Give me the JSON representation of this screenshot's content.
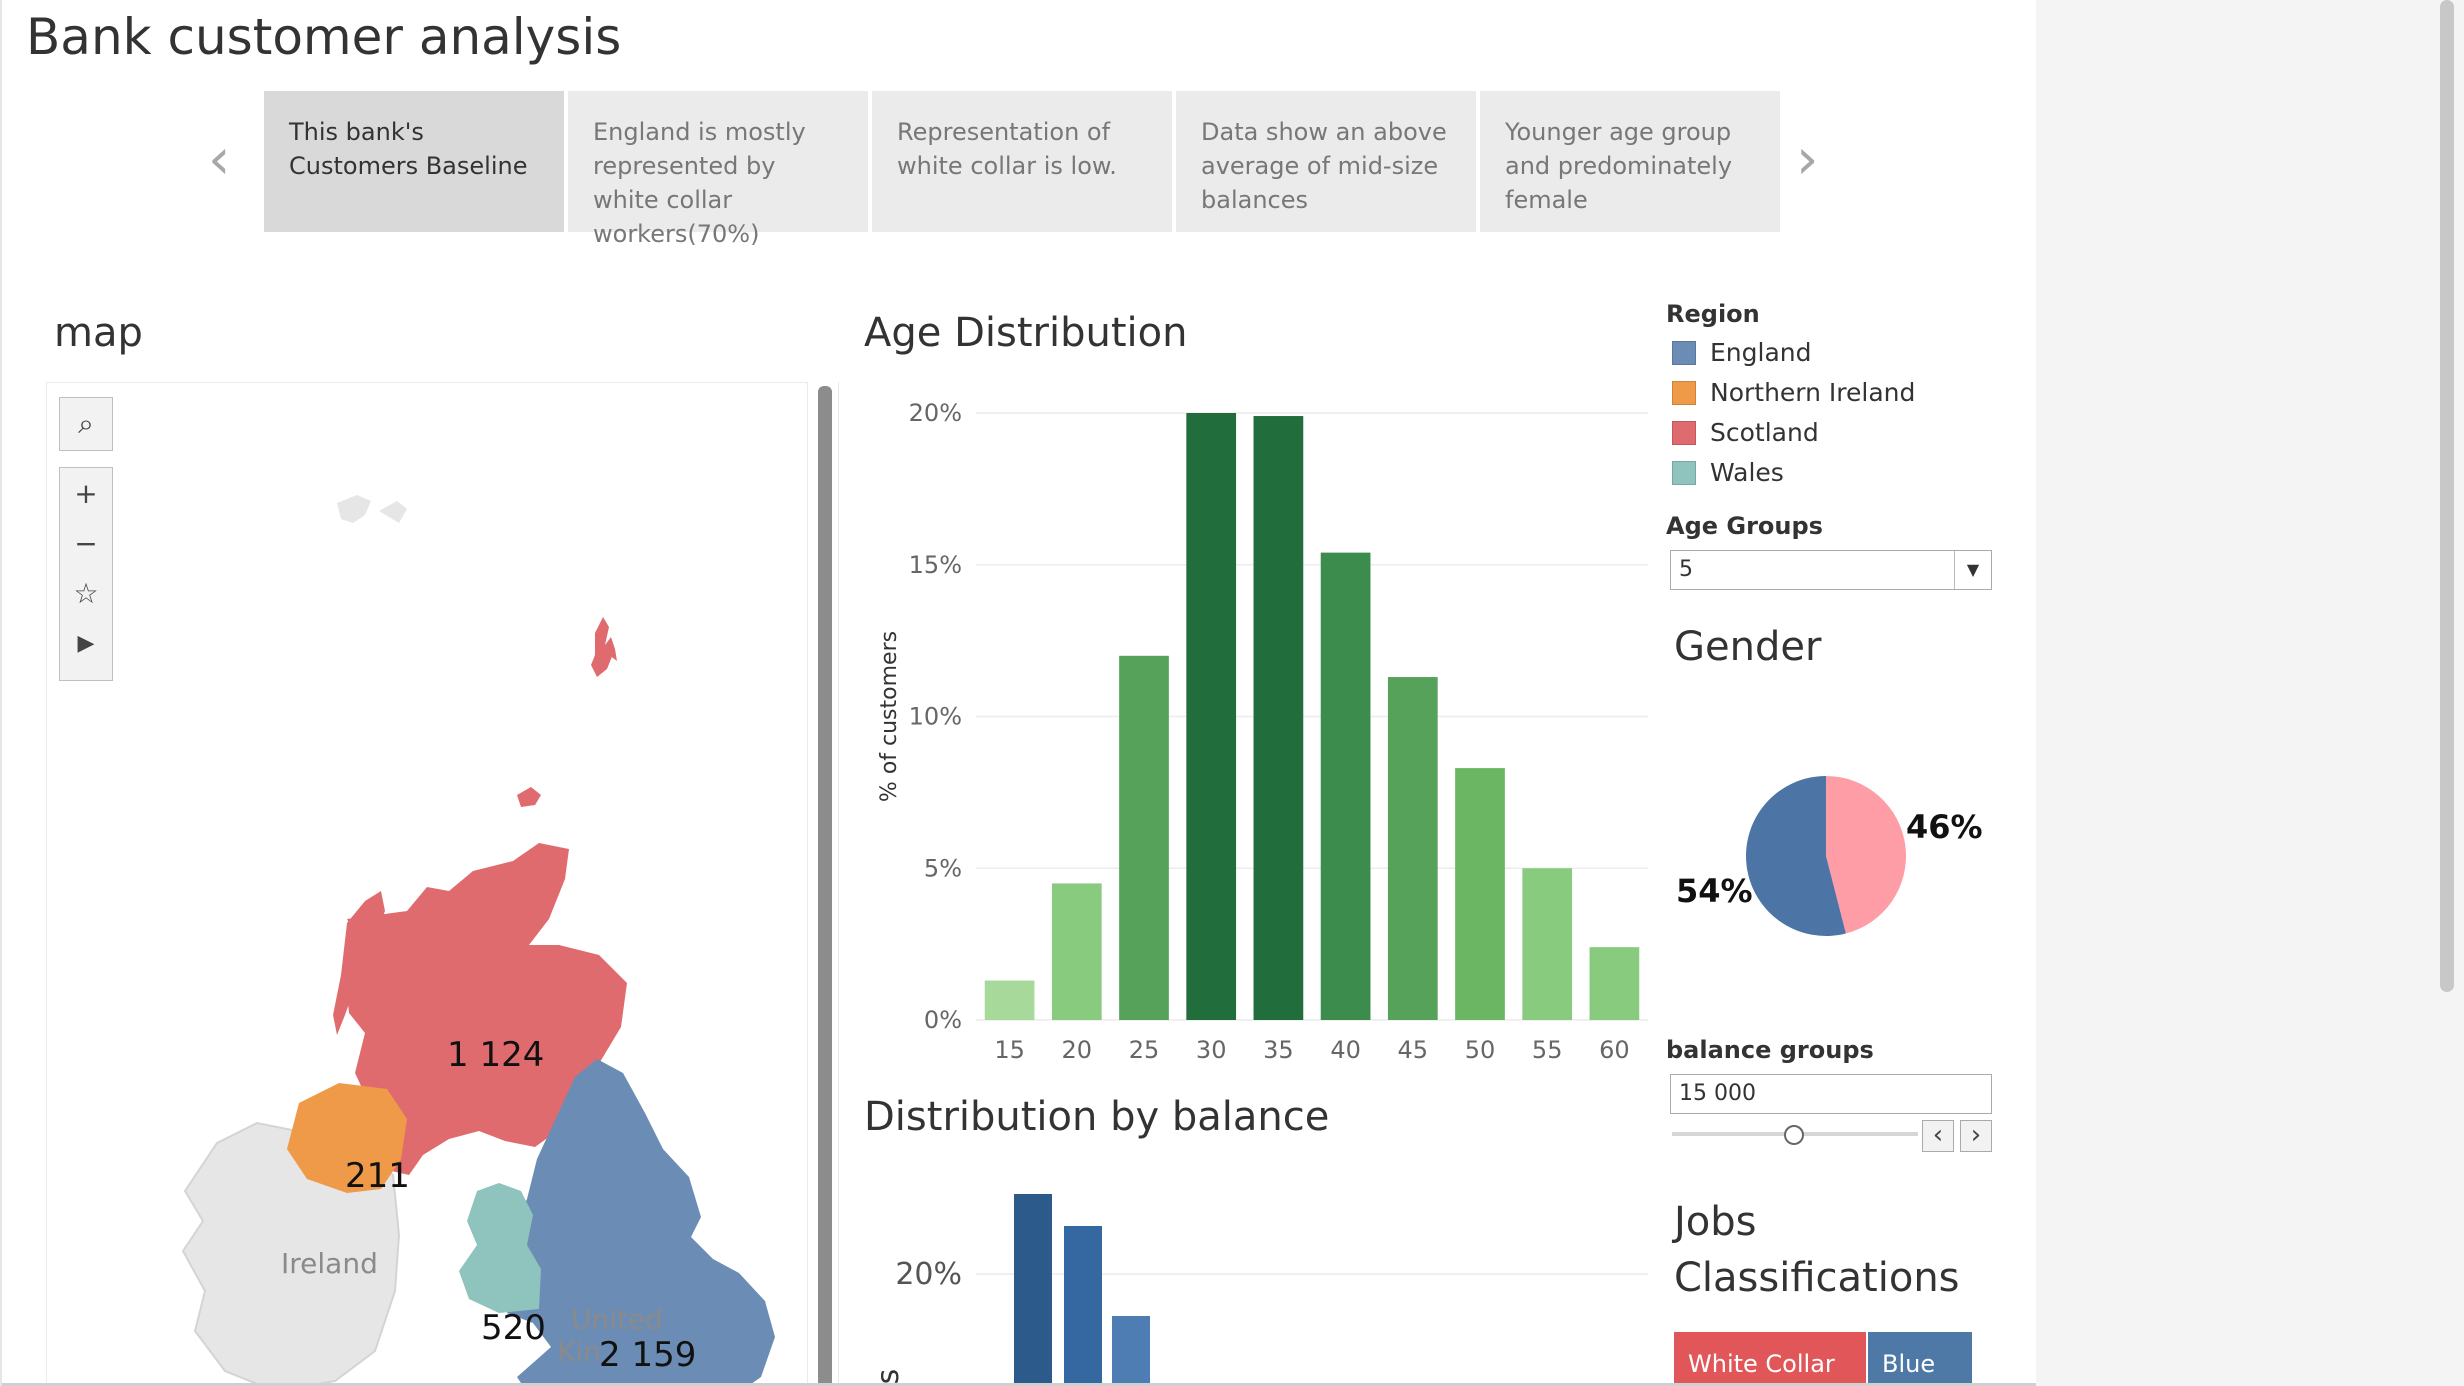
{
  "page": {
    "title": "Bank customer analysis"
  },
  "story": {
    "points": [
      "This bank's Customers Baseline",
      "England is mostly represented by white collar workers(70%)",
      "Representation of white collar is low.",
      "Data show an above average of mid-size balances",
      "Younger age group and predominately female"
    ],
    "active_index": 0
  },
  "map": {
    "title": "map",
    "labels": {
      "scotland": "1 124",
      "northern_ireland": "211",
      "wales": "520",
      "england": "2 159"
    },
    "place_names": {
      "ireland": "Ireland",
      "uk_line1": "United",
      "uk_line2": "Kin"
    },
    "colors": {
      "england": "#6b8db5",
      "northern_ireland": "#ef9a48",
      "scotland": "#e06b6e",
      "wales": "#8fc3bd",
      "other": "#e6e6e6"
    }
  },
  "age_chart": {
    "title": "Age Distribution",
    "chart_data": {
      "type": "bar",
      "title": "Age Distribution",
      "ylabel": "% of customers",
      "xlabel": "",
      "categories": [
        "15",
        "20",
        "25",
        "30",
        "35",
        "40",
        "45",
        "50",
        "55",
        "60"
      ],
      "values": [
        1.3,
        4.5,
        12.0,
        20.0,
        19.9,
        15.4,
        11.3,
        8.3,
        5.0,
        2.4
      ],
      "yticks": [
        "0%",
        "5%",
        "10%",
        "15%",
        "20%"
      ],
      "ylim": [
        0,
        20
      ],
      "colors": [
        "#a7d99b",
        "#88cb7f",
        "#56a25a",
        "#226d3c",
        "#226d3c",
        "#3c8c4d",
        "#56a25a",
        "#6ab663",
        "#88cb7f",
        "#88cb7f"
      ]
    }
  },
  "balance_chart": {
    "title": "Distribution by balance",
    "ylabel_visible": "ers",
    "ytick": "20%",
    "chart_data": {
      "type": "bar",
      "title": "Distribution by balance",
      "visible_bar_colors": [
        "#2c5a8b",
        "#3567a0",
        "#4e7db4"
      ]
    }
  },
  "legend": {
    "title": "Region",
    "items": [
      {
        "label": "England",
        "color": "#6b8db5"
      },
      {
        "label": "Northern Ireland",
        "color": "#ef9a48"
      },
      {
        "label": "Scotland",
        "color": "#e06b6e"
      },
      {
        "label": "Wales",
        "color": "#8fc3bd"
      }
    ]
  },
  "age_groups": {
    "label": "Age Groups",
    "value": "5"
  },
  "gender": {
    "title": "Gender",
    "chart_data": {
      "type": "pie",
      "slices": [
        {
          "label": "54%",
          "value": 54,
          "color": "#4c74a5"
        },
        {
          "label": "46%",
          "value": 46,
          "color": "#ff9da6"
        }
      ]
    }
  },
  "balance_groups": {
    "label": "balance groups",
    "value": "15 000"
  },
  "jobs": {
    "title_line1": "Jobs",
    "title_line2": "Classifications",
    "bars": [
      {
        "label": "White Collar",
        "color": "#e15759"
      },
      {
        "label": "Blue",
        "color": "#4e79a7"
      }
    ]
  }
}
